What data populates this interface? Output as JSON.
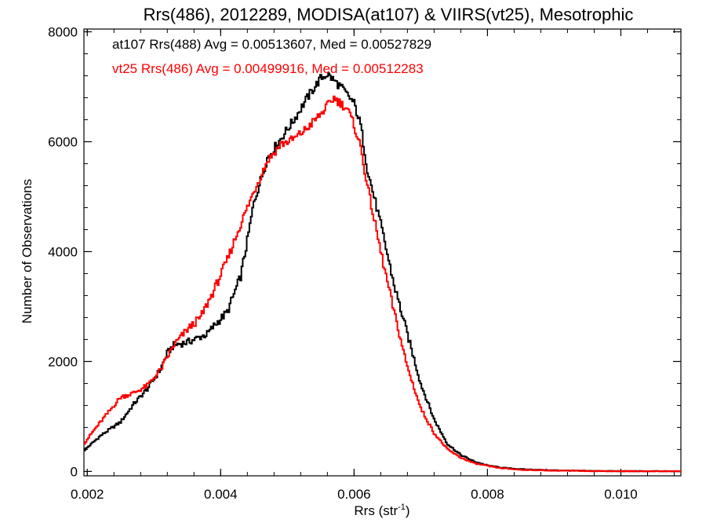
{
  "chart_data": {
    "type": "line",
    "title": "Rrs(486), 2012289, MODISA(at107) & VIIRS(vt25), Mesotrophic",
    "xlabel": "Rrs (str",
    "xlabel_sup": "-1",
    "xlabel_suffix": ")",
    "ylabel": "Number of Observations",
    "xlim": [
      0.00195,
      0.0109
    ],
    "ylim": [
      -80,
      8050
    ],
    "x_ticks": [
      0.002,
      0.004,
      0.006,
      0.008,
      0.01
    ],
    "x_tick_labels": [
      "0.002",
      "0.004",
      "0.006",
      "0.008",
      "0.010"
    ],
    "y_ticks": [
      0,
      2000,
      4000,
      6000,
      8000
    ],
    "y_tick_labels": [
      "0",
      "2000",
      "4000",
      "6000",
      "8000"
    ],
    "grid": false,
    "legend_position": "top-left",
    "series": [
      {
        "name": "at107 Rrs(488) Avg = 0.00513607, Med = 0.00527829",
        "color": "#000000",
        "style": "step",
        "points": [
          [
            0.00195,
            380
          ],
          [
            0.0022,
            650
          ],
          [
            0.0025,
            900
          ],
          [
            0.0027,
            1230
          ],
          [
            0.0029,
            1500
          ],
          [
            0.0031,
            1860
          ],
          [
            0.0032,
            2150
          ],
          [
            0.0033,
            2300
          ],
          [
            0.0035,
            2350
          ],
          [
            0.0037,
            2450
          ],
          [
            0.0038,
            2500
          ],
          [
            0.0039,
            2650
          ],
          [
            0.0041,
            2900
          ],
          [
            0.0043,
            3550
          ],
          [
            0.0044,
            4200
          ],
          [
            0.0045,
            4900
          ],
          [
            0.0047,
            5700
          ],
          [
            0.0049,
            6050
          ],
          [
            0.0051,
            6400
          ],
          [
            0.0053,
            6800
          ],
          [
            0.0055,
            7150
          ],
          [
            0.0056,
            7230
          ],
          [
            0.0058,
            7000
          ],
          [
            0.006,
            6700
          ],
          [
            0.0061,
            6300
          ],
          [
            0.0062,
            5500
          ],
          [
            0.0064,
            4500
          ],
          [
            0.0066,
            3400
          ],
          [
            0.0068,
            2500
          ],
          [
            0.007,
            1600
          ],
          [
            0.0072,
            950
          ],
          [
            0.0074,
            500
          ],
          [
            0.0076,
            300
          ],
          [
            0.0078,
            180
          ],
          [
            0.008,
            110
          ],
          [
            0.0082,
            70
          ],
          [
            0.0085,
            40
          ],
          [
            0.009,
            20
          ],
          [
            0.0095,
            10
          ],
          [
            0.01,
            5
          ],
          [
            0.0109,
            2
          ]
        ]
      },
      {
        "name": "vt25 Rrs(486) Avg = 0.00499916, Med = 0.00512283",
        "color": "#ff0000",
        "style": "step",
        "points": [
          [
            0.00195,
            500
          ],
          [
            0.0021,
            750
          ],
          [
            0.0023,
            1050
          ],
          [
            0.0025,
            1350
          ],
          [
            0.0027,
            1430
          ],
          [
            0.0029,
            1560
          ],
          [
            0.0031,
            1850
          ],
          [
            0.0033,
            2300
          ],
          [
            0.0035,
            2580
          ],
          [
            0.0037,
            2800
          ],
          [
            0.0039,
            3300
          ],
          [
            0.0041,
            3850
          ],
          [
            0.0043,
            4500
          ],
          [
            0.0045,
            5100
          ],
          [
            0.0047,
            5650
          ],
          [
            0.0049,
            5950
          ],
          [
            0.0051,
            6050
          ],
          [
            0.0053,
            6250
          ],
          [
            0.0055,
            6500
          ],
          [
            0.0057,
            6800
          ],
          [
            0.0059,
            6600
          ],
          [
            0.006,
            6300
          ],
          [
            0.0061,
            5900
          ],
          [
            0.0062,
            5200
          ],
          [
            0.0064,
            4000
          ],
          [
            0.0066,
            2900
          ],
          [
            0.0068,
            1900
          ],
          [
            0.007,
            1150
          ],
          [
            0.0072,
            700
          ],
          [
            0.0074,
            400
          ],
          [
            0.0076,
            250
          ],
          [
            0.0078,
            150
          ],
          [
            0.008,
            100
          ],
          [
            0.0082,
            60
          ],
          [
            0.0085,
            30
          ],
          [
            0.009,
            15
          ],
          [
            0.0095,
            8
          ],
          [
            0.01,
            4
          ],
          [
            0.0109,
            2
          ]
        ]
      }
    ]
  }
}
